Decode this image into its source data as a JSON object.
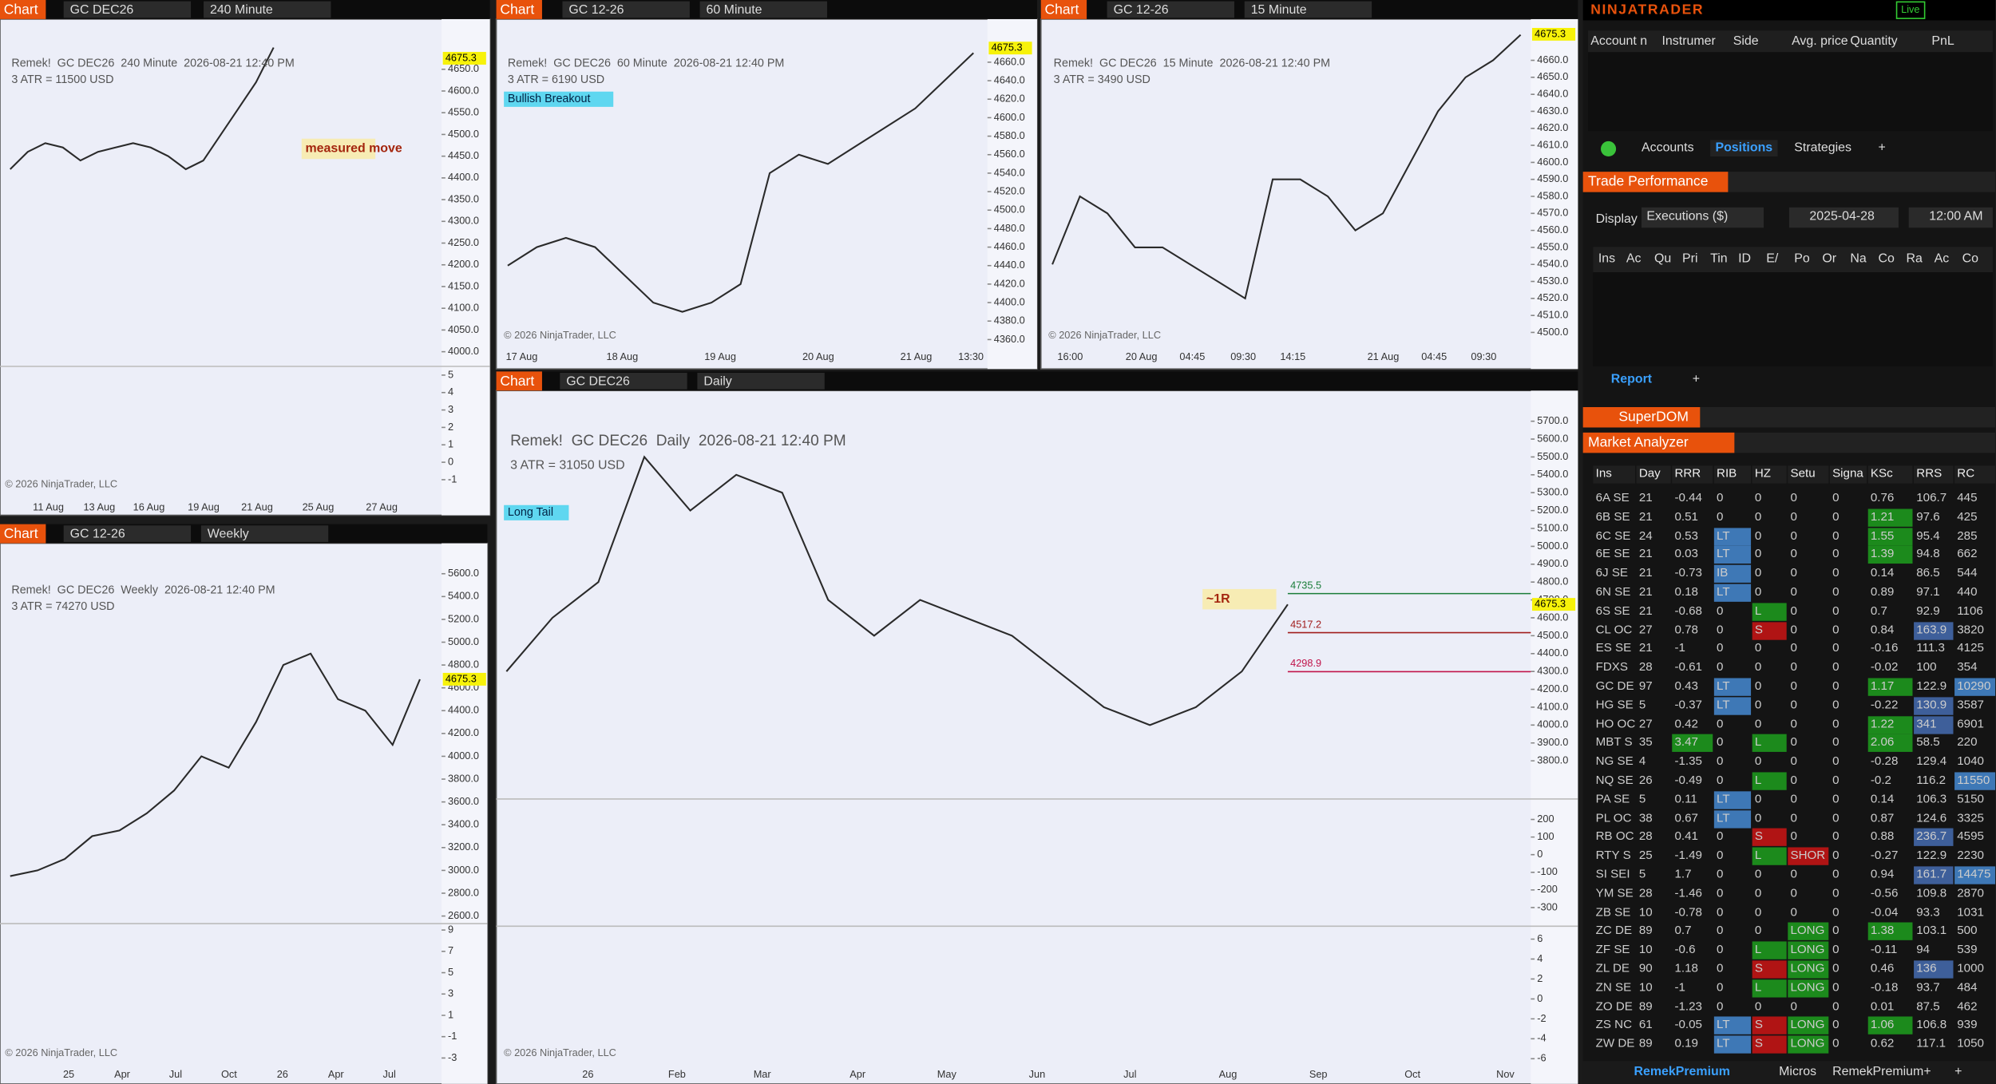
{
  "charts": [
    {
      "toolbar": {
        "label": "Chart",
        "instrument": "GC DEC26",
        "interval": "240 Minute"
      },
      "title": "Remek!  GC DEC26  240 Minute  2026-08-21 12:40 PM",
      "atr": "3 ATR = 11500 USD",
      "annotations": [
        "measured move"
      ],
      "last_price": 4675.3,
      "ylim": [
        3975,
        4745
      ],
      "yticks": [
        {
          "value": 4650,
          "label": "4650.0"
        },
        {
          "value": 4600,
          "label": "4600.0"
        },
        {
          "value": 4550,
          "label": "4550.0"
        },
        {
          "value": 4500,
          "label": "4500.0"
        },
        {
          "value": 4450,
          "label": "4450.0"
        },
        {
          "value": 4400,
          "label": "4400.0"
        },
        {
          "value": 4350,
          "label": "4350.0"
        },
        {
          "value": 4300,
          "label": "4300.0"
        },
        {
          "value": 4250,
          "label": "4250.0"
        },
        {
          "value": 4200,
          "label": "4200.0"
        },
        {
          "value": 4150,
          "label": "4150.0"
        },
        {
          "value": 4100,
          "label": "4100.0"
        },
        {
          "value": 4050,
          "label": "4050.0"
        },
        {
          "value": 4000,
          "label": "4000.0"
        }
      ],
      "close": [
        4420,
        4460,
        4480,
        4470,
        4440,
        4460,
        4470,
        4480,
        4470,
        4450,
        4420,
        4440,
        4500,
        4560,
        4620,
        4700
      ],
      "panes": [
        {
          "ylim": [
            -1.8,
            5.5
          ],
          "yticks": [
            5,
            4,
            3,
            2,
            1,
            0,
            -1
          ]
        }
      ],
      "xlabels": [
        "11 Aug",
        "13 Aug",
        "16 Aug",
        "19 Aug",
        "21 Aug",
        "25 Aug",
        "27 Aug"
      ],
      "copyright": "© 2026 NinjaTrader, LLC"
    },
    {
      "toolbar": {
        "label": "Chart",
        "instrument": "GC 12-26",
        "interval": "60 Minute"
      },
      "title": "Remek!  GC DEC26  60 Minute  2026-08-21 12:40 PM",
      "atr": "3 ATR = 6190 USD",
      "badge": "Bullish Breakout",
      "last_price": 4675.3,
      "ylim": [
        4353,
        4697
      ],
      "yticks": [
        {
          "value": 4660,
          "label": "4660.0"
        },
        {
          "value": 4640,
          "label": "4640.0"
        },
        {
          "value": 4620,
          "label": "4620.0"
        },
        {
          "value": 4600,
          "label": "4600.0"
        },
        {
          "value": 4580,
          "label": "4580.0"
        },
        {
          "value": 4560,
          "label": "4560.0"
        },
        {
          "value": 4540,
          "label": "4540.0"
        },
        {
          "value": 4520,
          "label": "4520.0"
        },
        {
          "value": 4500,
          "label": "4500.0"
        },
        {
          "value": 4480,
          "label": "4480.0"
        },
        {
          "value": 4460,
          "label": "4460.0"
        },
        {
          "value": 4440,
          "label": "4440.0"
        },
        {
          "value": 4420,
          "label": "4420.0"
        },
        {
          "value": 4400,
          "label": "4400.0"
        },
        {
          "value": 4380,
          "label": "4380.0"
        },
        {
          "value": 4360,
          "label": "4360.0"
        }
      ],
      "close": [
        4440,
        4460,
        4470,
        4460,
        4430,
        4400,
        4390,
        4400,
        4420,
        4540,
        4560,
        4550,
        4570,
        4590,
        4610,
        4640,
        4670
      ],
      "xlabels": [
        "17 Aug",
        "18 Aug",
        "19 Aug",
        "20 Aug",
        "21 Aug",
        "13:30"
      ],
      "copyright": "© 2026 NinjaTrader, LLC"
    },
    {
      "toolbar": {
        "label": "Chart",
        "instrument": "GC 12-26",
        "interval": "15 Minute"
      },
      "title": "Remek!  GC DEC26  15 Minute  2026-08-21 12:40 PM",
      "atr": "3 ATR = 3490 USD",
      "last_price": 4675.3,
      "ylim": [
        4492,
        4679
      ],
      "yticks": [
        {
          "value": 4660,
          "label": "4660.0"
        },
        {
          "value": 4650,
          "label": "4650.0"
        },
        {
          "value": 4640,
          "label": "4640.0"
        },
        {
          "value": 4630,
          "label": "4630.0"
        },
        {
          "value": 4620,
          "label": "4620.0"
        },
        {
          "value": 4610,
          "label": "4610.0"
        },
        {
          "value": 4600,
          "label": "4600.0"
        },
        {
          "value": 4590,
          "label": "4590.0"
        },
        {
          "value": 4580,
          "label": "4580.0"
        },
        {
          "value": 4570,
          "label": "4570.0"
        },
        {
          "value": 4560,
          "label": "4560.0"
        },
        {
          "value": 4550,
          "label": "4550.0"
        },
        {
          "value": 4540,
          "label": "4540.0"
        },
        {
          "value": 4530,
          "label": "4530.0"
        },
        {
          "value": 4520,
          "label": "4520.0"
        },
        {
          "value": 4510,
          "label": "4510.0"
        },
        {
          "value": 4500,
          "label": "4500.0"
        }
      ],
      "close": [
        4540,
        4580,
        4570,
        4550,
        4550,
        4540,
        4530,
        4520,
        4590,
        4590,
        4580,
        4560,
        4570,
        4600,
        4630,
        4650,
        4660,
        4675
      ],
      "xlabels": [
        "16:00",
        "20 Aug",
        "04:45",
        "09:30",
        "14:15",
        "21 Aug",
        "04:45",
        "09:30"
      ],
      "copyright": "© 2026 NinjaTrader, LLC"
    },
    {
      "toolbar": {
        "label": "Chart",
        "instrument": "GC 12-26",
        "interval": "Weekly"
      },
      "title": "Remek!  GC DEC26  Weekly  2026-08-21 12:40 PM",
      "atr": "3 ATR = 74270 USD",
      "last_price": 4675.3,
      "ylim": [
        2578,
        5778
      ],
      "yticks": [
        {
          "value": 5600,
          "label": "5600.0"
        },
        {
          "value": 5400,
          "label": "5400.0"
        },
        {
          "value": 5200,
          "label": "5200.0"
        },
        {
          "value": 5000,
          "label": "5000.0"
        },
        {
          "value": 4800,
          "label": "4800.0"
        },
        {
          "value": 4600,
          "label": "4600.0"
        },
        {
          "value": 4400,
          "label": "4400.0"
        },
        {
          "value": 4200,
          "label": "4200.0"
        },
        {
          "value": 4000,
          "label": "4000.0"
        },
        {
          "value": 3800,
          "label": "3800.0"
        },
        {
          "value": 3600,
          "label": "3600.0"
        },
        {
          "value": 3400,
          "label": "3400.0"
        },
        {
          "value": 3200,
          "label": "3200.0"
        },
        {
          "value": 3000,
          "label": "3000.0"
        },
        {
          "value": 2800,
          "label": "2800.0"
        },
        {
          "value": 2600,
          "label": "2600.0"
        }
      ],
      "close": [
        2950,
        3000,
        3100,
        3300,
        3350,
        3500,
        3700,
        4000,
        3900,
        4300,
        4800,
        4900,
        4500,
        4400,
        4100,
        4675
      ],
      "panes": [
        {
          "ylim": [
            -4,
            9.6
          ],
          "yticks": [
            9,
            7,
            5,
            3,
            1,
            -1,
            -3
          ]
        }
      ],
      "xlabels": [
        "25",
        "Apr",
        "Jul",
        "Oct",
        "26",
        "Apr",
        "Jul"
      ],
      "copyright": "© 2026 NinjaTrader, LLC"
    },
    {
      "toolbar": {
        "label": "Chart",
        "instrument": "GC DEC26",
        "interval": "Daily"
      },
      "title": "Remek!  GC DEC26  Daily  2026-08-21 12:40 PM",
      "atr": "3 ATR = 31050 USD",
      "badge": "Long Tail",
      "annotations": [
        "~1R"
      ],
      "last_price": 4675.3,
      "levels": [
        4735.5,
        4517.2,
        4298.9
      ],
      "ylim": [
        3608,
        5793
      ],
      "yticks": [
        {
          "value": 5700,
          "label": "5700.0"
        },
        {
          "value": 5600,
          "label": "5600.0"
        },
        {
          "value": 5500,
          "label": "5500.0"
        },
        {
          "value": 5400,
          "label": "5400.0"
        },
        {
          "value": 5300,
          "label": "5300.0"
        },
        {
          "value": 5200,
          "label": "5200.0"
        },
        {
          "value": 5100,
          "label": "5100.0"
        },
        {
          "value": 5000,
          "label": "5000.0"
        },
        {
          "value": 4900,
          "label": "4900.0"
        },
        {
          "value": 4800,
          "label": "4800.0"
        },
        {
          "value": 4700,
          "label": "4700.0"
        },
        {
          "value": 4600,
          "label": "4600.0"
        },
        {
          "value": 4500,
          "label": "4500.0"
        },
        {
          "value": 4400,
          "label": "4400.0"
        },
        {
          "value": 4300,
          "label": "4300.0"
        },
        {
          "value": 4200,
          "label": "4200.0"
        },
        {
          "value": 4100,
          "label": "4100.0"
        },
        {
          "value": 4000,
          "label": "4000.0"
        },
        {
          "value": 3900,
          "label": "3900.0"
        },
        {
          "value": 3800,
          "label": "3800.0"
        }
      ],
      "close": [
        4300,
        4600,
        4800,
        5500,
        5200,
        5400,
        5300,
        4700,
        4500,
        4700,
        4600,
        4500,
        4300,
        4100,
        4000,
        4100,
        4300,
        4675
      ],
      "panes": [
        {
          "ylim": [
            -384,
            316
          ],
          "yticks": [
            200,
            100,
            0,
            -100,
            -200,
            -300
          ]
        },
        {
          "ylim": [
            -7,
            7.3
          ],
          "yticks": [
            6,
            4,
            2,
            0,
            -2,
            -4,
            -6
          ]
        }
      ],
      "xlabels": [
        "26",
        "Feb",
        "Mar",
        "Apr",
        "May",
        "Jun",
        "Jul",
        "Aug",
        "Sep",
        "Oct",
        "Nov"
      ],
      "copyright": "© 2026 NinjaTrader, LLC"
    }
  ],
  "ninjatrader": {
    "brand": "NINJATRADER",
    "live": "Live",
    "positions": {
      "columns": [
        "Account n",
        "Instrumer",
        "Side",
        "Avg. price",
        "Quantity",
        "PnL"
      ],
      "tabs": [
        "Accounts",
        "Positions",
        "Strategies",
        "+"
      ]
    },
    "trade_performance": {
      "title": "Trade Performance",
      "display_label": "Display",
      "display": "Executions ($)",
      "date": "2025-04-28",
      "time": "12:00 AM",
      "columns": [
        "Ins",
        "Ac",
        "Qu",
        "Pri",
        "Tin",
        "ID",
        "E/",
        "Po",
        "Or",
        "Na",
        "Co",
        "Ra",
        "Ac",
        "Co"
      ],
      "tabs": [
        "Report",
        "+"
      ]
    },
    "superdom": "SuperDOM",
    "market_analyzer": {
      "title": "Market Analyzer",
      "columns": [
        "Ins",
        "Day",
        "RRR",
        "RIB",
        "HZ",
        "Setu",
        "Signa",
        "KSc",
        "RRS",
        "RC"
      ],
      "rows": [
        [
          "6A SE",
          "21",
          "-0.44",
          "0",
          "0",
          "0",
          "0",
          "0.76",
          "106.7",
          "445"
        ],
        [
          "6B SE",
          "21",
          "0.51",
          "0",
          "0",
          "0",
          "0",
          "1.21",
          "97.6",
          "425"
        ],
        [
          "6C SE",
          "24",
          "0.53",
          "LT",
          "0",
          "0",
          "0",
          "1.55",
          "95.4",
          "285"
        ],
        [
          "6E SE",
          "21",
          "0.03",
          "LT",
          "0",
          "0",
          "0",
          "1.39",
          "94.8",
          "662"
        ],
        [
          "6J SE",
          "21",
          "-0.73",
          "IB",
          "0",
          "0",
          "0",
          "0.14",
          "86.5",
          "544"
        ],
        [
          "6N SE",
          "21",
          "0.18",
          "LT",
          "0",
          "0",
          "0",
          "0.89",
          "97.1",
          "440"
        ],
        [
          "6S SE",
          "21",
          "-0.68",
          "0",
          "L",
          "0",
          "0",
          "0.7",
          "92.9",
          "1106"
        ],
        [
          "CL OC",
          "27",
          "0.78",
          "0",
          "S",
          "0",
          "0",
          "0.84",
          "163.9",
          "3820"
        ],
        [
          "ES SE",
          "21",
          "-1",
          "0",
          "0",
          "0",
          "0",
          "-0.16",
          "111.3",
          "4125"
        ],
        [
          "FDXS",
          "28",
          "-0.61",
          "0",
          "0",
          "0",
          "0",
          "-0.02",
          "100",
          "354"
        ],
        [
          "GC DE",
          "97",
          "0.43",
          "LT",
          "0",
          "0",
          "0",
          "1.17",
          "122.9",
          "10290"
        ],
        [
          "HG SE",
          "5",
          "-0.37",
          "LT",
          "0",
          "0",
          "0",
          "-0.22",
          "130.9",
          "3587"
        ],
        [
          "HO OC",
          "27",
          "0.42",
          "0",
          "0",
          "0",
          "0",
          "1.22",
          "341",
          "6901"
        ],
        [
          "MBT S",
          "35",
          "3.47",
          "0",
          "L",
          "0",
          "0",
          "2.06",
          "58.5",
          "220"
        ],
        [
          "NG SE",
          "4",
          "-1.35",
          "0",
          "0",
          "0",
          "0",
          "-0.28",
          "129.4",
          "1040"
        ],
        [
          "NQ SE",
          "26",
          "-0.49",
          "0",
          "L",
          "0",
          "0",
          "-0.2",
          "116.2",
          "11550"
        ],
        [
          "PA SE",
          "5",
          "0.11",
          "LT",
          "0",
          "0",
          "0",
          "0.14",
          "106.3",
          "5150"
        ],
        [
          "PL OC",
          "38",
          "0.67",
          "LT",
          "0",
          "0",
          "0",
          "0.87",
          "124.6",
          "3325"
        ],
        [
          "RB OC",
          "28",
          "0.41",
          "0",
          "S",
          "0",
          "0",
          "0.88",
          "236.7",
          "4595"
        ],
        [
          "RTY S",
          "25",
          "-1.49",
          "0",
          "L",
          "SHOR",
          "0",
          "-0.27",
          "122.9",
          "2230"
        ],
        [
          "SI SEI",
          "5",
          "1.7",
          "0",
          "0",
          "0",
          "0",
          "0.94",
          "161.7",
          "14475"
        ],
        [
          "YM SE",
          "28",
          "-1.46",
          "0",
          "0",
          "0",
          "0",
          "-0.56",
          "109.8",
          "2870"
        ],
        [
          "ZB SE",
          "10",
          "-0.78",
          "0",
          "0",
          "0",
          "0",
          "-0.04",
          "93.3",
          "1031"
        ],
        [
          "ZC DE",
          "89",
          "0.7",
          "0",
          "0",
          "LONG",
          "0",
          "1.38",
          "103.1",
          "500"
        ],
        [
          "ZF SE",
          "10",
          "-0.6",
          "0",
          "L",
          "LONG",
          "0",
          "-0.11",
          "94",
          "539"
        ],
        [
          "ZL DE",
          "90",
          "1.18",
          "0",
          "S",
          "LONG",
          "0",
          "0.46",
          "136",
          "1000"
        ],
        [
          "ZN SE",
          "10",
          "-1",
          "0",
          "L",
          "LONG",
          "0",
          "-0.18",
          "93.7",
          "484"
        ],
        [
          "ZO DE",
          "89",
          "-1.23",
          "0",
          "0",
          "0",
          "0",
          "0.01",
          "87.5",
          "462"
        ],
        [
          "ZS NC",
          "61",
          "-0.05",
          "LT",
          "S",
          "LONG",
          "0",
          "1.06",
          "106.8",
          "939"
        ],
        [
          "ZW DE",
          "89",
          "0.19",
          "LT",
          "S",
          "LONG",
          "0",
          "0.62",
          "117.1",
          "1050"
        ]
      ]
    },
    "bottom_tabs": [
      "RemekPremium",
      "Micros",
      "RemekPremium+",
      "+"
    ]
  }
}
